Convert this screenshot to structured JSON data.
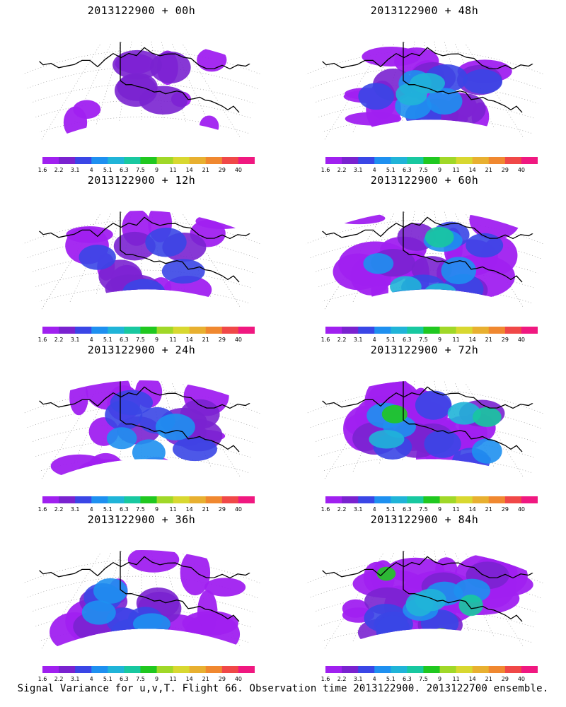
{
  "caption": "Signal Variance for u,v,T. Flight 66. Observation time 2013122900. 2013122700 ensemble.",
  "colorbar": {
    "labels": [
      "1.6",
      "2.2",
      "3.1",
      "4",
      "5.1",
      "6.3",
      "7.5",
      "9",
      "11",
      "14",
      "21",
      "29",
      "40"
    ],
    "colors": [
      "#a020f0",
      "#7a22d0",
      "#3a46e6",
      "#1e90f0",
      "#20b4d8",
      "#18c8a0",
      "#20c820",
      "#a0d828",
      "#d8d830",
      "#e8b030",
      "#f08830",
      "#f04848",
      "#f01880"
    ]
  },
  "panels": [
    {
      "title": "2013122900 + 00h",
      "intensity": 0.12
    },
    {
      "title": "2013122900 + 48h",
      "intensity": 0.45
    },
    {
      "title": "2013122900 + 12h",
      "intensity": 0.22
    },
    {
      "title": "2013122900 + 60h",
      "intensity": 0.55
    },
    {
      "title": "2013122900 + 24h",
      "intensity": 0.3
    },
    {
      "title": "2013122900 + 72h",
      "intensity": 0.7
    },
    {
      "title": "2013122900 + 36h",
      "intensity": 0.38
    },
    {
      "title": "2013122900 + 84h",
      "intensity": 0.75
    }
  ]
}
